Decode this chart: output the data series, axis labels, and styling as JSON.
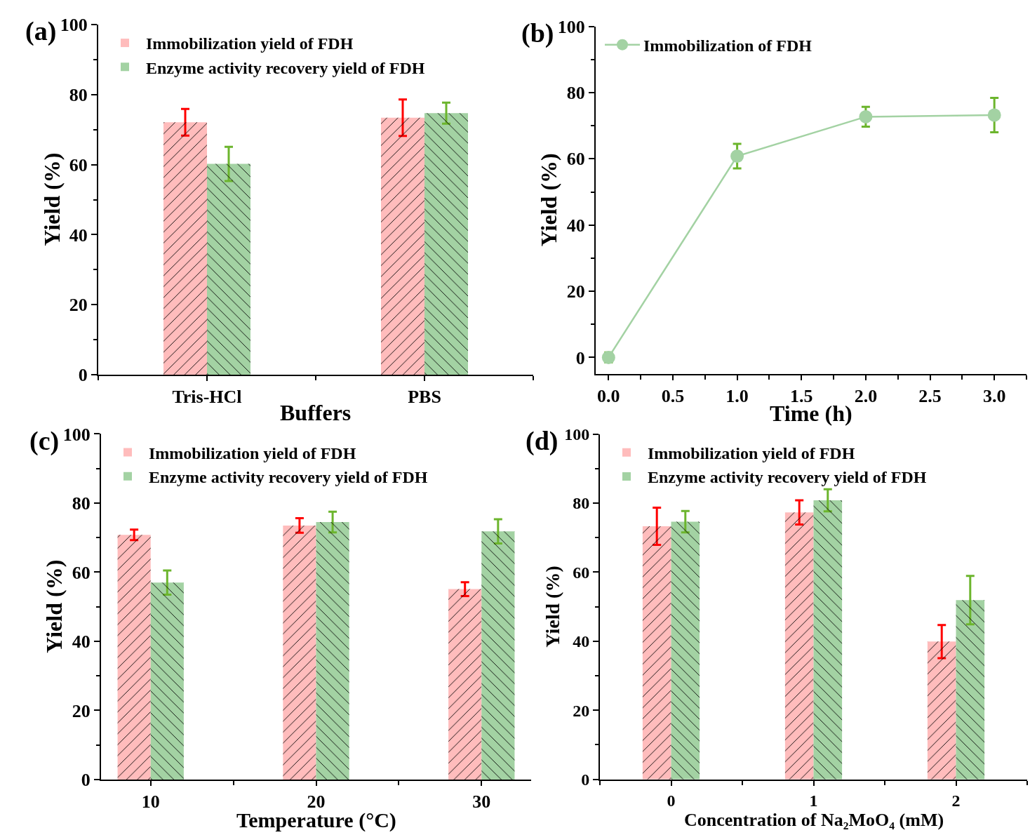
{
  "chart_data": [
    {
      "type": "bar",
      "title": "(a)",
      "xlabel": "Buffers",
      "ylabel": "Yield (%)",
      "categories": [
        "Tris-HCl",
        "PBS"
      ],
      "series": [
        {
          "name": "Immobilization yield of FDH",
          "color": "#ffbcbc",
          "values": [
            72.1,
            73.4
          ],
          "errors": [
            3.8,
            5.2
          ]
        },
        {
          "name": "Enzyme activity recovery yield of FDH",
          "color": "#a3d2a3",
          "values": [
            60.2,
            74.7
          ],
          "errors": [
            4.9,
            3.0
          ]
        }
      ],
      "ylim": [
        0,
        100
      ],
      "yticks": [
        0,
        20,
        40,
        60,
        80,
        100
      ],
      "legend": "top left"
    },
    {
      "type": "line",
      "title": "(b)",
      "xlabel": "Time (h)",
      "ylabel": "Yield (%)",
      "x": [
        0,
        1,
        2,
        3
      ],
      "series": [
        {
          "name": "Immobilization of FDH",
          "color": "#a3d2a3",
          "values": [
            0,
            60.8,
            72.7,
            73.2
          ],
          "errors": [
            1.5,
            3.7,
            3.0,
            5.2
          ]
        }
      ],
      "xlim": [
        -0.1,
        3.25
      ],
      "xticks": [
        {
          "value": 0,
          "label": "0.0"
        },
        0.5,
        {
          "value": 1,
          "label": "1.0"
        },
        1.5,
        {
          "value": 2,
          "label": "2.0"
        },
        2.5,
        {
          "value": 3,
          "label": "3.0"
        }
      ],
      "ylim": [
        -5,
        100
      ],
      "yticks": [
        0,
        20,
        40,
        60,
        80,
        100
      ],
      "marker": "circle",
      "line_style": "solid",
      "legend": "top left"
    },
    {
      "type": "bar",
      "title": "(c)",
      "xlabel": "Temperature (°C)",
      "ylabel": "Yield (%)",
      "x": [
        10,
        20,
        30
      ],
      "series": [
        {
          "name": "Immobilization yield of FDH",
          "color": "#ffbcbc",
          "values": [
            70.8,
            73.5,
            55.1
          ],
          "errors": [
            1.5,
            2.1,
            2.0
          ]
        },
        {
          "name": "Enzyme activity recovery yield of FDH",
          "color": "#a3d2a3",
          "values": [
            57.0,
            74.5,
            71.8
          ],
          "errors": [
            3.5,
            3.0,
            3.5
          ]
        }
      ],
      "xlim": [
        7,
        33
      ],
      "xticks": [
        10,
        20,
        30
      ],
      "ylim": [
        0,
        100
      ],
      "yticks": [
        0,
        20,
        40,
        60,
        80,
        100
      ],
      "legend": "top left"
    },
    {
      "type": "bar",
      "title": "(d)",
      "xlabel": "Concentration of Na₂MoO₄ (mM)",
      "ylabel": "Yield (%)",
      "x": [
        0,
        1,
        2
      ],
      "series": [
        {
          "name": "Immobilization yield of FDH",
          "color": "#ffbcbc",
          "values": [
            73.3,
            77.3,
            39.9
          ],
          "errors": [
            5.4,
            3.5,
            4.8
          ]
        },
        {
          "name": "Enzyme activity recovery yield of FDH",
          "color": "#a3d2a3",
          "values": [
            74.6,
            80.8,
            51.9
          ],
          "errors": [
            3.1,
            3.2,
            7.0
          ]
        }
      ],
      "xlim": [
        -0.5,
        2.5
      ],
      "xticks": [
        0,
        1,
        2
      ],
      "ylim": [
        0,
        100
      ],
      "yticks": [
        0,
        20,
        40,
        60,
        80,
        100
      ],
      "legend": "top left"
    }
  ]
}
